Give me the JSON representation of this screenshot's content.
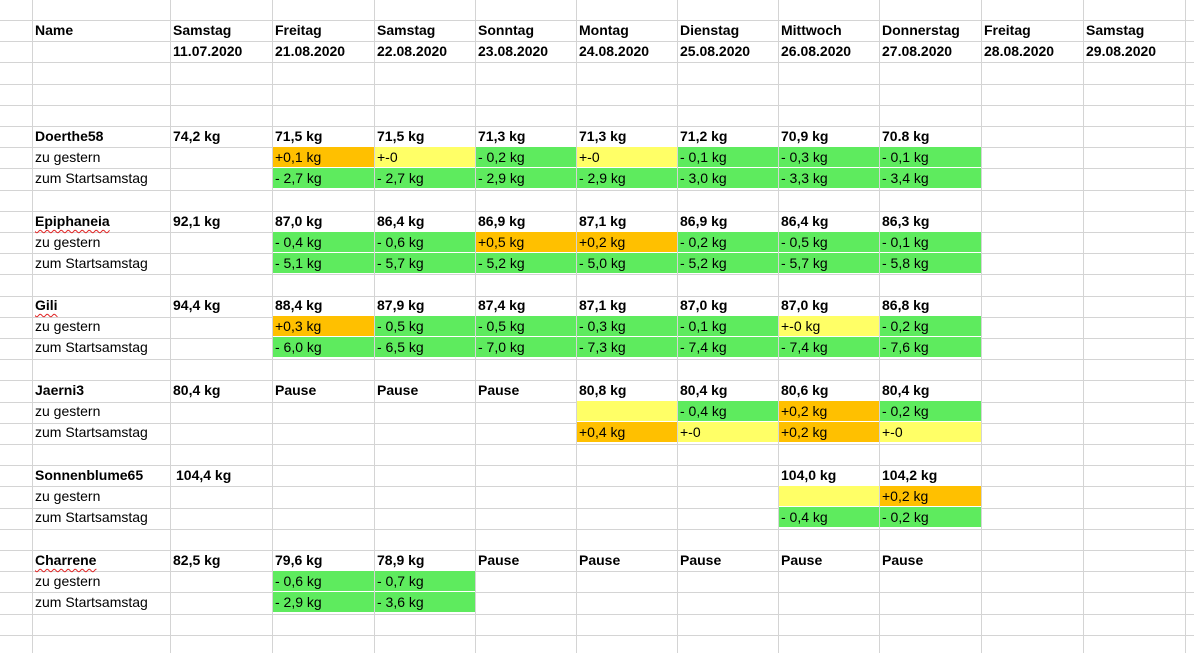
{
  "header": {
    "name_label": "Name",
    "columns": [
      {
        "day": "Samstag",
        "date": "11.07.2020"
      },
      {
        "day": "Freitag",
        "date": "21.08.2020"
      },
      {
        "day": "Samstag",
        "date": "22.08.2020"
      },
      {
        "day": "Sonntag",
        "date": "23.08.2020"
      },
      {
        "day": "Montag",
        "date": "24.08.2020"
      },
      {
        "day": "Dienstag",
        "date": "25.08.2020"
      },
      {
        "day": "Mittwoch",
        "date": "26.08.2020"
      },
      {
        "day": "Donnerstag",
        "date": "27.08.2020"
      },
      {
        "day": "Freitag",
        "date": "28.08.2020"
      },
      {
        "day": "Samstag",
        "date": "29.08.2020"
      }
    ]
  },
  "row_labels": {
    "daily": "zu gestern",
    "total": "zum Startsamstag"
  },
  "colors": {
    "loss": "#5eeb5e",
    "gain": "#ffc000",
    "neutral": "#ffff66",
    "grid": "#d4d4d4"
  },
  "people": [
    {
      "name": "Doerthe58",
      "spellcheck": false,
      "weights": [
        "74,2 kg",
        "71,5 kg",
        "71,5 kg",
        "71,3 kg",
        "71,3 kg",
        "71,2 kg",
        "70,9 kg",
        "70.8 kg",
        "",
        ""
      ],
      "daily": [
        {
          "text": "",
          "c": ""
        },
        {
          "text": "+0,1 kg",
          "c": "gain"
        },
        {
          "text": "+-0",
          "c": "neutral"
        },
        {
          "text": "- 0,2 kg",
          "c": "loss"
        },
        {
          "text": "+-0",
          "c": "neutral"
        },
        {
          "text": "- 0,1 kg",
          "c": "loss"
        },
        {
          "text": "- 0,3 kg",
          "c": "loss"
        },
        {
          "text": "- 0,1 kg",
          "c": "loss"
        },
        {
          "text": "",
          "c": ""
        },
        {
          "text": "",
          "c": ""
        }
      ],
      "total": [
        {
          "text": "",
          "c": ""
        },
        {
          "text": "- 2,7 kg",
          "c": "loss"
        },
        {
          "text": "- 2,7 kg",
          "c": "loss"
        },
        {
          "text": "- 2,9 kg",
          "c": "loss"
        },
        {
          "text": "- 2,9 kg",
          "c": "loss"
        },
        {
          "text": "- 3,0 kg",
          "c": "loss"
        },
        {
          "text": "- 3,3 kg",
          "c": "loss"
        },
        {
          "text": "- 3,4 kg",
          "c": "loss"
        },
        {
          "text": "",
          "c": ""
        },
        {
          "text": "",
          "c": ""
        }
      ]
    },
    {
      "name": "Epiphaneia",
      "spellcheck": true,
      "weights": [
        "92,1 kg",
        "87,0 kg",
        "86,4 kg",
        "86,9 kg",
        "87,1 kg",
        "86,9 kg",
        "86,4 kg",
        "86,3 kg",
        "",
        ""
      ],
      "daily": [
        {
          "text": "",
          "c": ""
        },
        {
          "text": "- 0,4 kg",
          "c": "loss"
        },
        {
          "text": "- 0,6 kg",
          "c": "loss"
        },
        {
          "text": "+0,5 kg",
          "c": "gain"
        },
        {
          "text": "+0,2 kg",
          "c": "gain"
        },
        {
          "text": "- 0,2 kg",
          "c": "loss"
        },
        {
          "text": "- 0,5 kg",
          "c": "loss"
        },
        {
          "text": "- 0,1 kg",
          "c": "loss"
        },
        {
          "text": "",
          "c": ""
        },
        {
          "text": "",
          "c": ""
        }
      ],
      "total": [
        {
          "text": "",
          "c": ""
        },
        {
          "text": "- 5,1 kg",
          "c": "loss"
        },
        {
          "text": "- 5,7 kg",
          "c": "loss"
        },
        {
          "text": "- 5,2 kg",
          "c": "loss"
        },
        {
          "text": "- 5,0 kg",
          "c": "loss"
        },
        {
          "text": "- 5,2 kg",
          "c": "loss"
        },
        {
          "text": "- 5,7 kg",
          "c": "loss"
        },
        {
          "text": "- 5,8 kg",
          "c": "loss"
        },
        {
          "text": "",
          "c": ""
        },
        {
          "text": "",
          "c": ""
        }
      ]
    },
    {
      "name": "Gili",
      "spellcheck": true,
      "weights": [
        "94,4 kg",
        "88,4 kg",
        "87,9 kg",
        "87,4 kg",
        "87,1 kg",
        "87,0 kg",
        "87,0 kg",
        "86,8 kg",
        "",
        ""
      ],
      "daily": [
        {
          "text": "",
          "c": ""
        },
        {
          "text": "+0,3 kg",
          "c": "gain"
        },
        {
          "text": "- 0,5 kg",
          "c": "loss"
        },
        {
          "text": "- 0,5 kg",
          "c": "loss"
        },
        {
          "text": "- 0,3 kg",
          "c": "loss"
        },
        {
          "text": "- 0,1 kg",
          "c": "loss"
        },
        {
          "text": "+-0 kg",
          "c": "neutral"
        },
        {
          "text": "- 0,2 kg",
          "c": "loss"
        },
        {
          "text": "",
          "c": ""
        },
        {
          "text": "",
          "c": ""
        }
      ],
      "total": [
        {
          "text": "",
          "c": ""
        },
        {
          "text": "- 6,0 kg",
          "c": "loss"
        },
        {
          "text": "- 6,5 kg",
          "c": "loss"
        },
        {
          "text": "- 7,0 kg",
          "c": "loss"
        },
        {
          "text": "- 7,3 kg",
          "c": "loss"
        },
        {
          "text": "- 7,4 kg",
          "c": "loss"
        },
        {
          "text": "- 7,4 kg",
          "c": "loss"
        },
        {
          "text": "- 7,6 kg",
          "c": "loss"
        },
        {
          "text": "",
          "c": ""
        },
        {
          "text": "",
          "c": ""
        }
      ]
    },
    {
      "name": "Jaerni3",
      "spellcheck": false,
      "weights": [
        "80,4 kg",
        "Pause",
        "Pause",
        "Pause",
        "80,8 kg",
        "80,4 kg",
        "80,6 kg",
        "80,4 kg",
        "",
        ""
      ],
      "daily": [
        {
          "text": "",
          "c": ""
        },
        {
          "text": "",
          "c": ""
        },
        {
          "text": "",
          "c": ""
        },
        {
          "text": "",
          "c": ""
        },
        {
          "text": "",
          "c": "neutral"
        },
        {
          "text": "- 0,4 kg",
          "c": "loss"
        },
        {
          "text": "+0,2 kg",
          "c": "gain"
        },
        {
          "text": "- 0,2 kg",
          "c": "loss"
        },
        {
          "text": "",
          "c": ""
        },
        {
          "text": "",
          "c": ""
        }
      ],
      "total": [
        {
          "text": "",
          "c": ""
        },
        {
          "text": "",
          "c": ""
        },
        {
          "text": "",
          "c": ""
        },
        {
          "text": "",
          "c": ""
        },
        {
          "text": "+0,4 kg",
          "c": "gain"
        },
        {
          "text": "+-0",
          "c": "neutral"
        },
        {
          "text": "+0,2 kg",
          "c": "gain"
        },
        {
          "text": "+-0",
          "c": "neutral"
        },
        {
          "text": "",
          "c": ""
        },
        {
          "text": "",
          "c": ""
        }
      ]
    },
    {
      "name": "Sonnenblume65",
      "spellcheck": false,
      "weights": [
        "104,4 kg",
        "",
        "",
        "",
        "",
        "",
        "104,0 kg",
        "104,2 kg",
        "",
        ""
      ],
      "daily": [
        {
          "text": "",
          "c": ""
        },
        {
          "text": "",
          "c": ""
        },
        {
          "text": "",
          "c": ""
        },
        {
          "text": "",
          "c": ""
        },
        {
          "text": "",
          "c": ""
        },
        {
          "text": "",
          "c": ""
        },
        {
          "text": "",
          "c": "neutral"
        },
        {
          "text": "+0,2 kg",
          "c": "gain"
        },
        {
          "text": "",
          "c": ""
        },
        {
          "text": "",
          "c": ""
        }
      ],
      "total": [
        {
          "text": "",
          "c": ""
        },
        {
          "text": "",
          "c": ""
        },
        {
          "text": "",
          "c": ""
        },
        {
          "text": "",
          "c": ""
        },
        {
          "text": "",
          "c": ""
        },
        {
          "text": "",
          "c": ""
        },
        {
          "text": "- 0,4 kg",
          "c": "loss"
        },
        {
          "text": "- 0,2 kg",
          "c": "loss"
        },
        {
          "text": "",
          "c": ""
        },
        {
          "text": "",
          "c": ""
        }
      ]
    },
    {
      "name": "Charrene",
      "spellcheck": true,
      "weights": [
        "82,5 kg",
        "79,6 kg",
        "78,9 kg",
        "Pause",
        "Pause",
        "Pause",
        "Pause",
        "Pause",
        "",
        ""
      ],
      "daily": [
        {
          "text": "",
          "c": ""
        },
        {
          "text": "- 0,6 kg",
          "c": "loss"
        },
        {
          "text": "- 0,7 kg",
          "c": "loss"
        },
        {
          "text": "",
          "c": ""
        },
        {
          "text": "",
          "c": ""
        },
        {
          "text": "",
          "c": ""
        },
        {
          "text": "",
          "c": ""
        },
        {
          "text": "",
          "c": ""
        },
        {
          "text": "",
          "c": ""
        },
        {
          "text": "",
          "c": ""
        }
      ],
      "total": [
        {
          "text": "",
          "c": ""
        },
        {
          "text": "- 2,9 kg",
          "c": "loss"
        },
        {
          "text": "- 3,6 kg",
          "c": "loss"
        },
        {
          "text": "",
          "c": ""
        },
        {
          "text": "",
          "c": ""
        },
        {
          "text": "",
          "c": ""
        },
        {
          "text": "",
          "c": ""
        },
        {
          "text": "",
          "c": ""
        },
        {
          "text": "",
          "c": ""
        },
        {
          "text": "",
          "c": ""
        }
      ]
    }
  ]
}
